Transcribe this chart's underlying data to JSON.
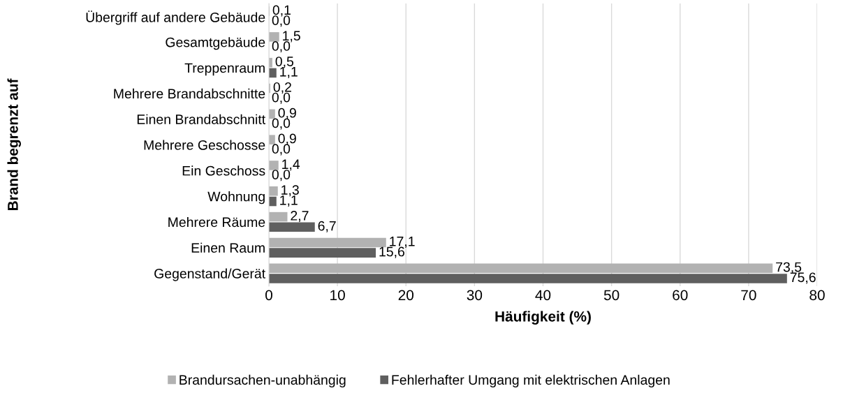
{
  "chart_data": {
    "type": "bar",
    "orientation": "horizontal",
    "xlabel": "Häufigkeit (%)",
    "ylabel": "Brand begrenzt auf",
    "categories": [
      "Übergriff auf andere Gebäude",
      "Gesamtgebäude",
      "Treppenraum",
      "Mehrere Brandabschnitte",
      "Einen Brandabschnitt",
      "Mehrere Geschosse",
      "Ein Geschoss",
      "Wohnung",
      "Mehrere Räume",
      "Einen Raum",
      "Gegenstand/Gerät"
    ],
    "series": [
      {
        "name": "Brandursachen-unabhängig",
        "color": "#b2b2b2",
        "values": [
          0.1,
          1.5,
          0.5,
          0.2,
          0.9,
          0.9,
          1.4,
          1.3,
          2.7,
          17.1,
          73.5
        ],
        "value_labels": [
          "0,1",
          "1,5",
          "0,5",
          "0,2",
          "0,9",
          "0,9",
          "1,4",
          "1,3",
          "2,7",
          "17,1",
          "73,5"
        ]
      },
      {
        "name": "Fehlerhafter Umgang mit elektrischen Anlagen",
        "color": "#5f5f5f",
        "values": [
          0.0,
          0.0,
          1.1,
          0.0,
          0.0,
          0.0,
          0.0,
          1.1,
          6.7,
          15.6,
          75.6
        ],
        "value_labels": [
          "0,0",
          "0,0",
          "1,1",
          "0,0",
          "0,0",
          "0,0",
          "0,0",
          "1,1",
          "6,7",
          "15,6",
          "75,6"
        ]
      }
    ],
    "xlim": [
      0,
      80
    ],
    "xticks": [
      0,
      10,
      20,
      30,
      40,
      50,
      60,
      70,
      80
    ],
    "grid": "x",
    "legend": "bottom"
  }
}
